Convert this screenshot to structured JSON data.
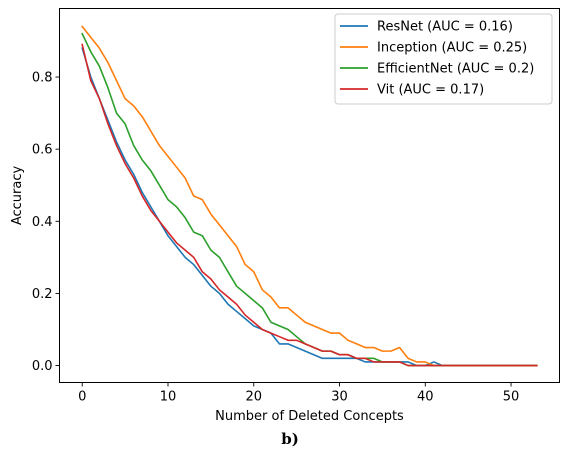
{
  "chart_data": {
    "type": "line",
    "caption": "b)",
    "xlabel": "Number of Deleted Concepts",
    "ylabel": "Accuracy",
    "xlim": [
      -2.65,
      55.65
    ],
    "ylim": [
      -0.047,
      0.99
    ],
    "xticks": [
      0,
      10,
      20,
      30,
      40,
      50
    ],
    "xtick_labels": [
      "0",
      "10",
      "20",
      "30",
      "40",
      "50"
    ],
    "yticks": [
      0.0,
      0.2,
      0.4,
      0.6,
      0.8
    ],
    "ytick_labels": [
      "0.0",
      "0.2",
      "0.4",
      "0.6",
      "0.8"
    ],
    "grid": false,
    "legend_position": "top-right",
    "x": [
      0,
      1,
      2,
      3,
      4,
      5,
      6,
      7,
      8,
      9,
      10,
      11,
      12,
      13,
      14,
      15,
      16,
      17,
      18,
      19,
      20,
      21,
      22,
      23,
      24,
      25,
      26,
      27,
      28,
      29,
      30,
      31,
      32,
      33,
      34,
      35,
      36,
      37,
      38,
      39,
      40,
      41,
      42,
      43,
      44,
      45,
      46,
      47,
      48,
      49,
      50,
      51,
      52,
      53
    ],
    "series": [
      {
        "name": "ResNet (AUC = 0.16)",
        "color": "#1f77b4",
        "values": [
          0.88,
          0.8,
          0.74,
          0.68,
          0.62,
          0.57,
          0.53,
          0.48,
          0.44,
          0.4,
          0.36,
          0.33,
          0.3,
          0.28,
          0.25,
          0.22,
          0.2,
          0.17,
          0.15,
          0.13,
          0.11,
          0.1,
          0.09,
          0.06,
          0.06,
          0.05,
          0.04,
          0.03,
          0.02,
          0.02,
          0.02,
          0.02,
          0.02,
          0.01,
          0.01,
          0.01,
          0.01,
          0.01,
          0.01,
          0.0,
          0.0,
          0.01,
          0.0,
          0.0,
          0.0,
          0.0,
          0.0,
          0.0,
          0.0,
          0.0,
          0.0,
          0.0,
          0.0,
          0.0
        ]
      },
      {
        "name": "Inception (AUC = 0.25)",
        "color": "#ff7f0e",
        "values": [
          0.94,
          0.91,
          0.88,
          0.84,
          0.79,
          0.74,
          0.72,
          0.69,
          0.65,
          0.61,
          0.58,
          0.55,
          0.52,
          0.47,
          0.46,
          0.42,
          0.39,
          0.36,
          0.33,
          0.28,
          0.26,
          0.21,
          0.19,
          0.16,
          0.16,
          0.14,
          0.12,
          0.11,
          0.1,
          0.09,
          0.09,
          0.07,
          0.06,
          0.05,
          0.05,
          0.04,
          0.04,
          0.05,
          0.02,
          0.01,
          0.01,
          0.0,
          0.0,
          0.0,
          0.0,
          0.0,
          0.0,
          0.0,
          0.0,
          0.0,
          0.0,
          0.0,
          0.0,
          0.0
        ]
      },
      {
        "name": "EfficientNet (AUC = 0.2)",
        "color": "#2ca02c",
        "values": [
          0.92,
          0.87,
          0.83,
          0.77,
          0.7,
          0.67,
          0.61,
          0.57,
          0.54,
          0.5,
          0.46,
          0.44,
          0.41,
          0.37,
          0.36,
          0.32,
          0.3,
          0.26,
          0.22,
          0.2,
          0.18,
          0.16,
          0.12,
          0.11,
          0.1,
          0.08,
          0.06,
          0.05,
          0.04,
          0.04,
          0.03,
          0.03,
          0.02,
          0.02,
          0.02,
          0.01,
          0.01,
          0.01,
          0.0,
          0.0,
          0.0,
          0.0,
          0.0,
          0.0,
          0.0,
          0.0,
          0.0,
          0.0,
          0.0,
          0.0,
          0.0,
          0.0,
          0.0,
          0.0
        ]
      },
      {
        "name": "Vit (AUC = 0.17)",
        "color": "#d62728",
        "values": [
          0.89,
          0.79,
          0.74,
          0.67,
          0.61,
          0.56,
          0.52,
          0.47,
          0.43,
          0.4,
          0.37,
          0.34,
          0.32,
          0.3,
          0.26,
          0.24,
          0.21,
          0.19,
          0.17,
          0.14,
          0.12,
          0.1,
          0.09,
          0.08,
          0.07,
          0.07,
          0.06,
          0.05,
          0.04,
          0.04,
          0.03,
          0.03,
          0.02,
          0.02,
          0.01,
          0.01,
          0.01,
          0.01,
          0.0,
          0.0,
          0.0,
          0.0,
          0.0,
          0.0,
          0.0,
          0.0,
          0.0,
          0.0,
          0.0,
          0.0,
          0.0,
          0.0,
          0.0,
          0.0
        ]
      }
    ]
  }
}
